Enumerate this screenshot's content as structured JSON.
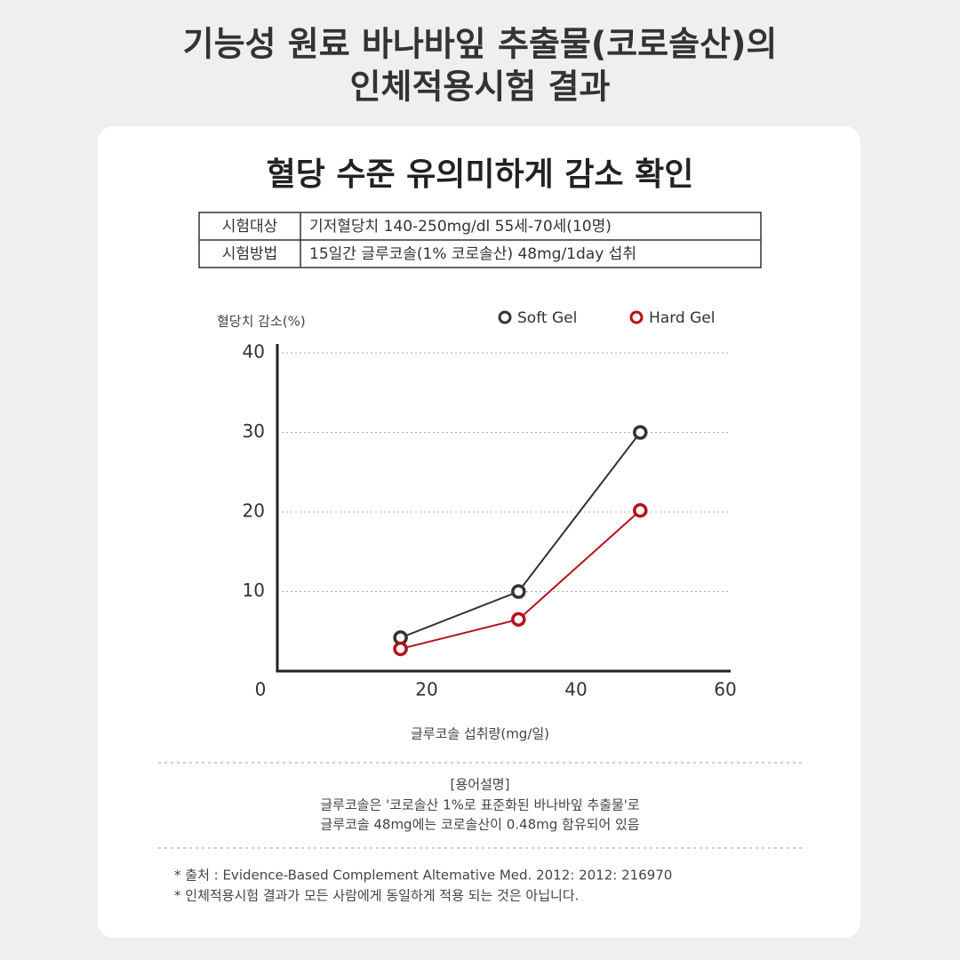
{
  "header": {
    "title_lines": [
      "기능성 원료 바나바잎 추출물(코로솔산)의",
      "인체적용시험 결과"
    ]
  },
  "card": {
    "heading": "혈당 수준 유의미하게 감소 확인",
    "table": {
      "rows": [
        [
          "시험대상",
          "기저혈당치 140-250mg/dl 55세-70세(10명)"
        ],
        [
          "시험방법",
          "15일간 글루코솔(1% 코로솔산) 48mg/1day 섭취"
        ]
      ]
    }
  },
  "chart_data": {
    "type": "line",
    "y_label": "혈당치 감소(%)",
    "x_label": "글루코솔 섭취량(mg/일)",
    "x": [
      16.5,
      32.3,
      48.6
    ],
    "series": [
      {
        "name": "Soft Gel",
        "color": "#333333",
        "values": [
          4.2,
          10,
          30
        ]
      },
      {
        "name": "Hard Gel",
        "color": "#b5121b",
        "values": [
          2.8,
          6.5,
          20.2
        ]
      }
    ],
    "xlim": [
      0,
      60
    ],
    "ylim": [
      0,
      40
    ],
    "xticks": [
      0,
      20,
      40,
      60
    ],
    "yticks": [
      10,
      20,
      30,
      40
    ],
    "grid": true
  },
  "notes": {
    "heading": "[용어설명]",
    "lines": [
      "글루코솔은 '코로솔산 1%로 표준화된 바나바잎 추출물'로",
      "글루코솔 48mg에는 코로솔산이 0.48mg 함유되어 있음"
    ]
  },
  "footnotes": [
    "* 출처 : Evidence-Based Complement Altemative Med. 2012: 2012: 216970",
    "* 인체적용시험 결과가 모든 사람에게 동일하게 적용 되는 것은 아닙니다."
  ]
}
